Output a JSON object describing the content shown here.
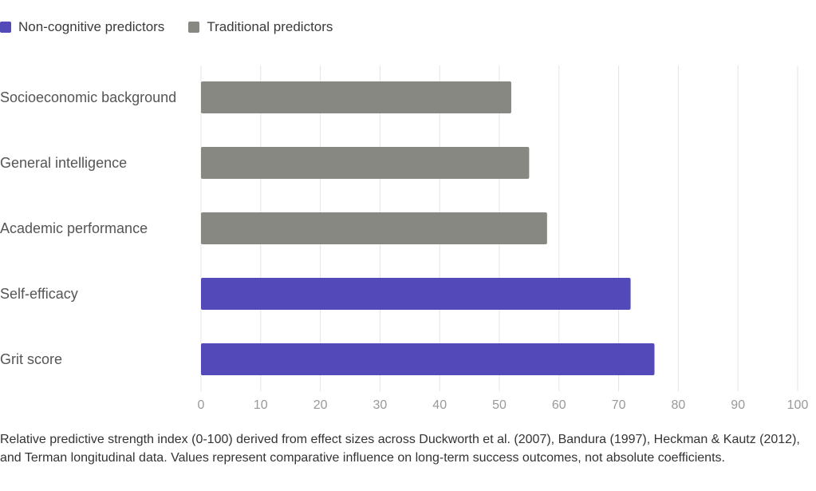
{
  "legend": [
    {
      "label": "Non-cognitive predictors",
      "color": "#5349b8"
    },
    {
      "label": "Traditional predictors",
      "color": "#888882"
    }
  ],
  "chart_data": {
    "type": "bar",
    "orientation": "horizontal",
    "categories": [
      "Socioeconomic background",
      "General intelligence",
      "Academic performance",
      "Self-efficacy",
      "Grit score"
    ],
    "values": [
      52,
      55,
      58,
      72,
      76
    ],
    "groups": [
      "Traditional predictors",
      "Traditional predictors",
      "Traditional predictors",
      "Non-cognitive predictors",
      "Non-cognitive predictors"
    ],
    "xlim": [
      0,
      100
    ],
    "xticks": [
      0,
      10,
      20,
      30,
      40,
      50,
      60,
      70,
      80,
      90,
      100
    ],
    "grid": "vertical",
    "legend_position": "top-left"
  },
  "caption": "Relative predictive strength index (0-100) derived from effect sizes across Duckworth et al. (2007), Bandura (1997), Heckman & Kautz (2012), and Terman longitudinal data. Values represent comparative influence on long-term success outcomes, not absolute coefficients."
}
